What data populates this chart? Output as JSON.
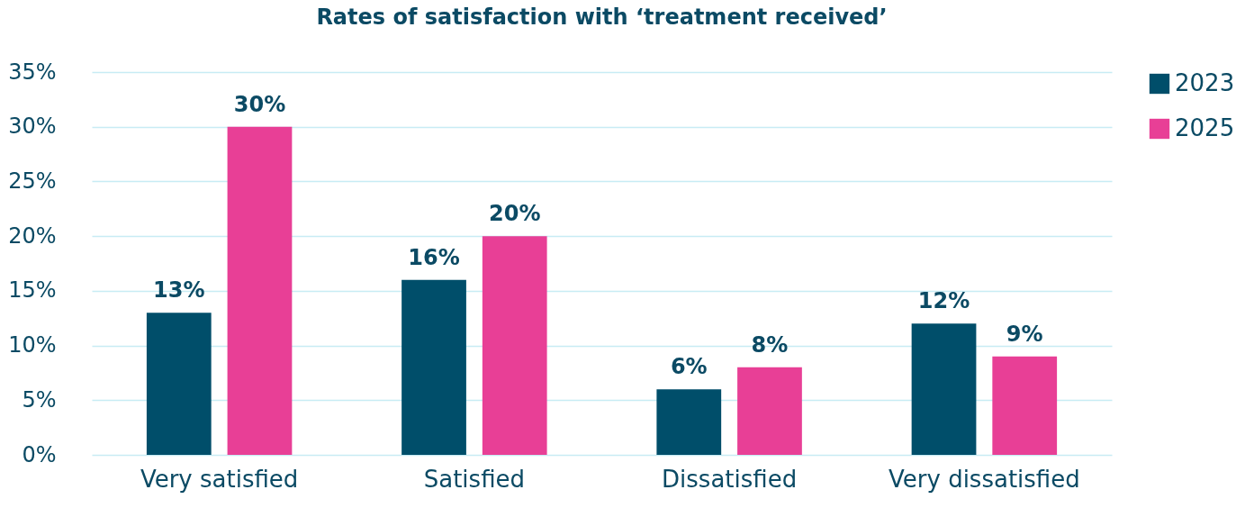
{
  "chart_data": {
    "type": "bar",
    "title": "Rates of satisfaction with ‘treatment received’",
    "categories": [
      "Very satisfied",
      "Satisfied",
      "Dissatisfied",
      "Very dissatisfied"
    ],
    "series": [
      {
        "name": "2023",
        "color": "#004e6a",
        "values": [
          13,
          16,
          6,
          12
        ],
        "value_labels": [
          "13%",
          "16%",
          "6%",
          "12%"
        ]
      },
      {
        "name": "2025",
        "color": "#e83f96",
        "values": [
          30,
          20,
          8,
          9
        ],
        "value_labels": [
          "30%",
          "20%",
          "8%",
          "9%"
        ]
      }
    ],
    "ylim": [
      0,
      35
    ],
    "yticks": [
      {
        "value": 0,
        "label": "0%"
      },
      {
        "value": 5,
        "label": "5%"
      },
      {
        "value": 10,
        "label": "10%"
      },
      {
        "value": 15,
        "label": "15%"
      },
      {
        "value": 20,
        "label": "20%"
      },
      {
        "value": 25,
        "label": "25%"
      },
      {
        "value": 30,
        "label": "30%"
      },
      {
        "value": 35,
        "label": "35%"
      }
    ],
    "grid": "y",
    "legend": "right"
  }
}
